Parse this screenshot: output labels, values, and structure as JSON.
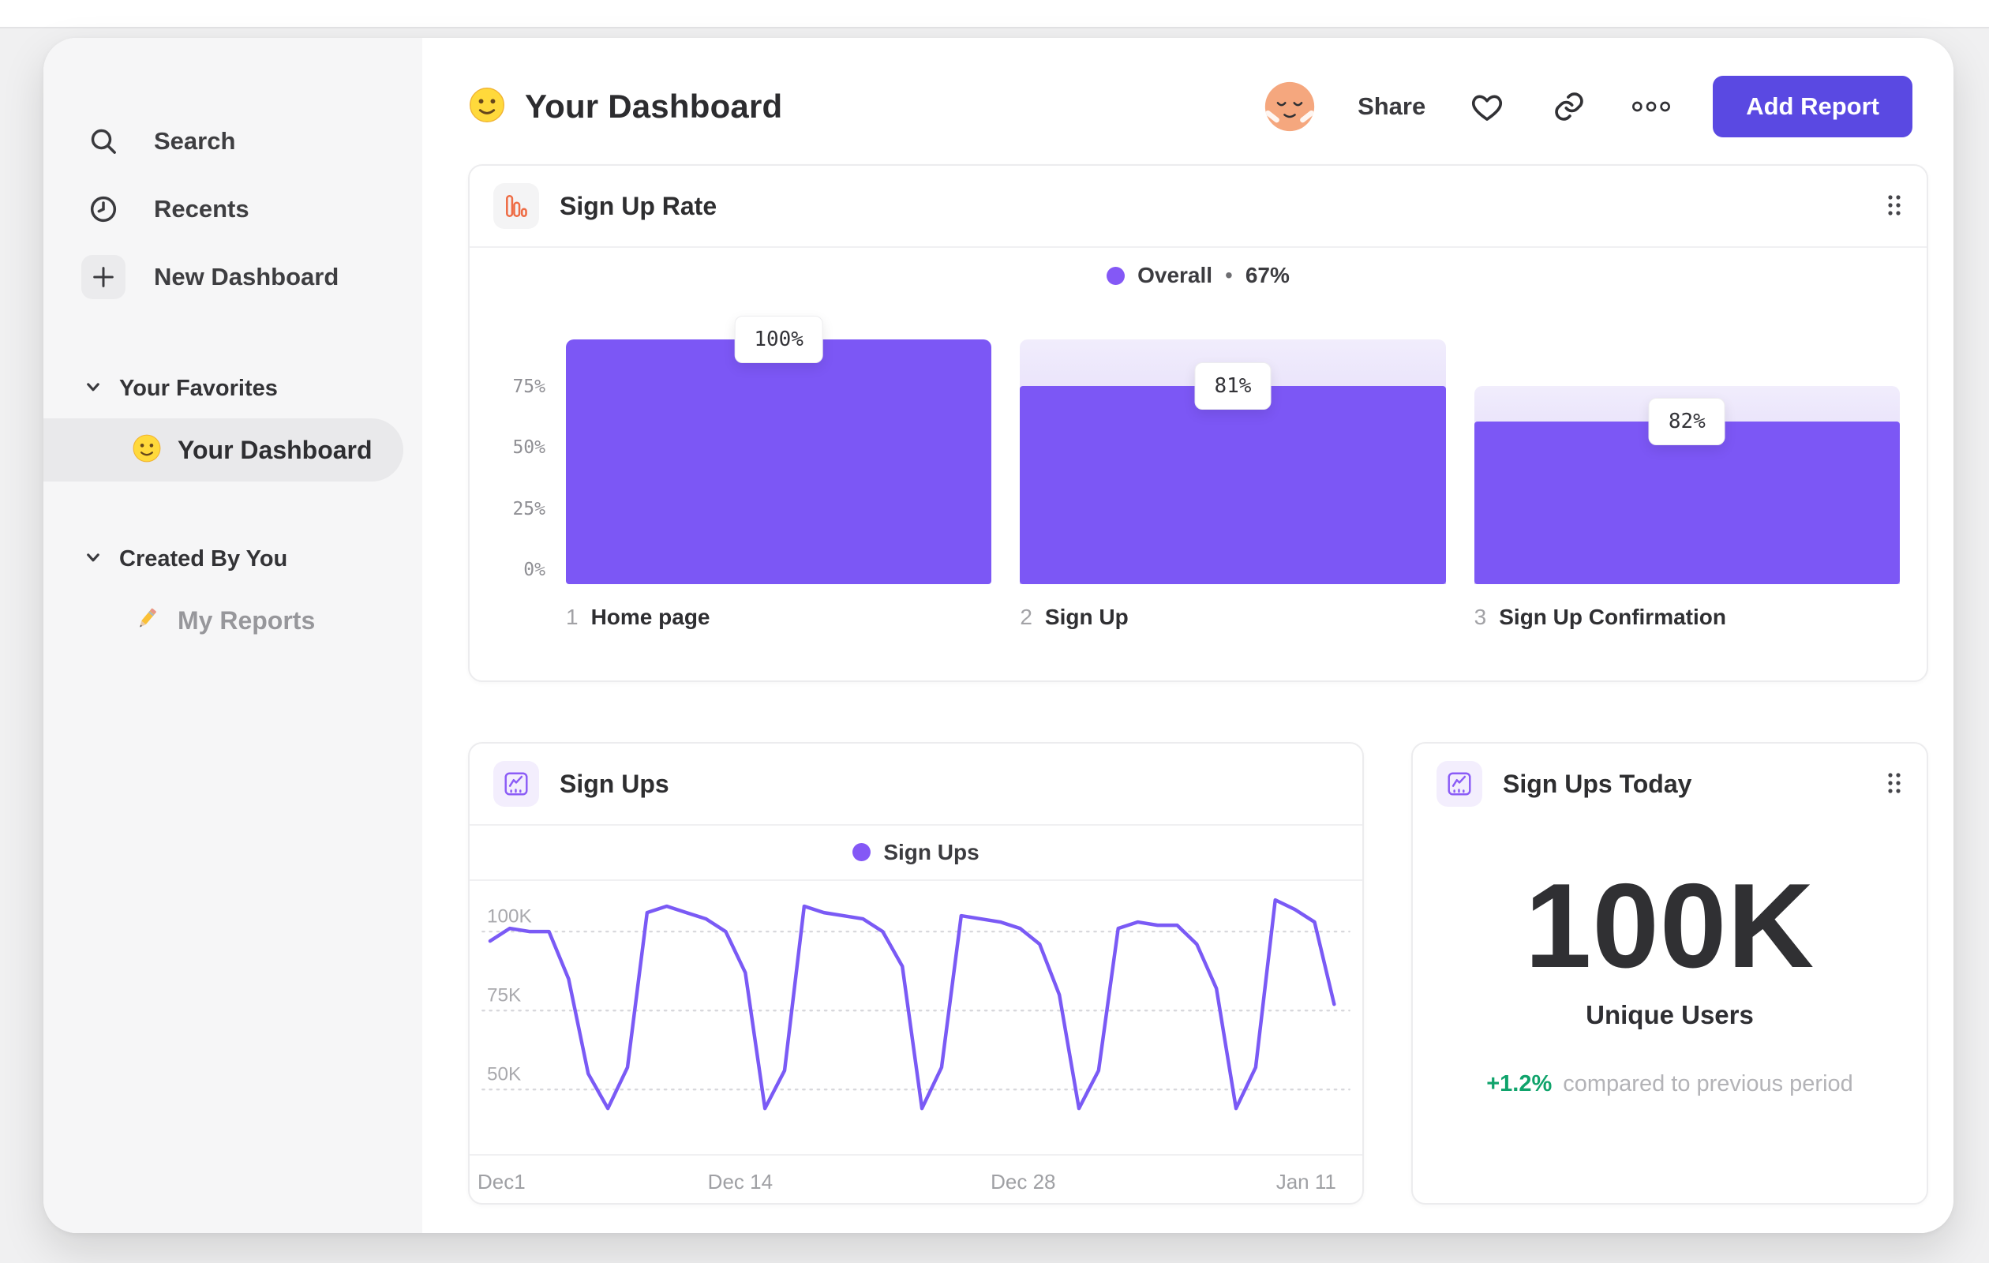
{
  "colors": {
    "purple_bar": "#7c57f5",
    "purple_button": "#5a49e2",
    "purple_line": "#7a5af5",
    "legend_dot": "#8458f6",
    "ghost_gradient_top": "#f1edfc",
    "ghost_gradient_bottom": "#cfc1f6",
    "orange_icon": "#ee6c45",
    "green_delta": "#0fa36b",
    "sidebar_bg": "#f6f6f7"
  },
  "sidebar": {
    "items": [
      {
        "icon": "search-icon",
        "label": "Search"
      },
      {
        "icon": "clock-icon",
        "label": "Recents"
      },
      {
        "icon": "plus-icon",
        "label": "New Dashboard"
      }
    ],
    "sections": [
      {
        "label": "Your Favorites",
        "items": [
          {
            "icon": "smiley-emoji-icon",
            "label": "Your Dashboard",
            "selected": true
          }
        ]
      },
      {
        "label": "Created By You",
        "items": [
          {
            "icon": "pencil-emoji-icon",
            "label": "My Reports",
            "selected": false
          }
        ]
      }
    ]
  },
  "header": {
    "title": "Your Dashboard",
    "share_label": "Share",
    "add_report_label": "Add Report"
  },
  "funnel_card": {
    "title": "Sign Up Rate",
    "legend_name": "Overall",
    "legend_sep": "•",
    "legend_value": "67%"
  },
  "line_card": {
    "title": "Sign Ups",
    "legend_name": "Sign Ups"
  },
  "today_card": {
    "title": "Sign Ups Today",
    "value": "100K",
    "label": "Unique Users",
    "delta": "+1.2%",
    "delta_desc": "compared to previous period"
  },
  "chart_data": [
    {
      "type": "bar",
      "subtype": "funnel",
      "title": "Sign Up Rate",
      "legend": {
        "name": "Overall",
        "value_pct": 67
      },
      "step_numbers": [
        1,
        2,
        3
      ],
      "categories": [
        "Home page",
        "Sign Up",
        "Sign Up Confirmation"
      ],
      "conversion_from_previous_pct": [
        100,
        81,
        82
      ],
      "conversion_overall_pct": [
        100,
        81,
        66.4
      ],
      "tooltip_labels": [
        "100%",
        "81%",
        "82%"
      ],
      "ytick_values": [
        75,
        50,
        25,
        0
      ],
      "ytick_labels": [
        "75%",
        "50%",
        "25%",
        "0%"
      ],
      "ylim": [
        0,
        100
      ],
      "grid": false,
      "legend_position": "top-center"
    },
    {
      "type": "line",
      "title": "Sign Ups",
      "series": [
        {
          "name": "Sign Ups",
          "values_thousands": [
            97,
            101,
            100,
            100,
            85,
            55,
            44,
            57,
            106,
            108,
            106,
            104,
            100,
            87,
            44,
            56,
            108,
            106,
            105,
            104,
            100,
            89,
            44,
            57,
            105,
            104,
            103,
            101,
            96,
            80,
            44,
            56,
            101,
            103,
            102,
            102,
            96,
            82,
            44,
            57,
            110,
            107,
            103,
            77
          ]
        }
      ],
      "x_start_label": "Dec1",
      "xtick_labels": [
        "Dec1",
        "Dec 14",
        "Dec 28",
        "Jan 11"
      ],
      "xtick_indices": [
        0,
        13,
        27,
        41
      ],
      "ytick_values": [
        100,
        75,
        50
      ],
      "ytick_labels": [
        "100K",
        "75K",
        "50K"
      ],
      "ylim": [
        31,
        116
      ],
      "grid": "dotted-horizontal",
      "legend_position": "top-center"
    },
    {
      "type": "big_number",
      "title": "Sign Ups Today",
      "value": "100K",
      "label": "Unique Users",
      "delta": "+1.2%",
      "comparison": "compared to previous period"
    }
  ]
}
